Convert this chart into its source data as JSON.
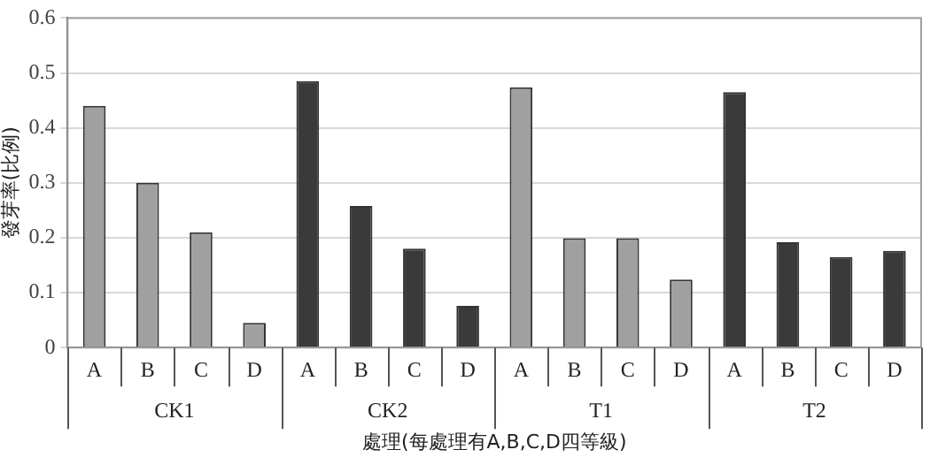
{
  "chart_data": {
    "type": "bar",
    "xlabel": "處理(每處理有A,B,C,D四等級)",
    "ylabel": "發芽率(比例)",
    "categories": [
      "A",
      "B",
      "C",
      "D",
      "A",
      "B",
      "C",
      "D",
      "A",
      "B",
      "C",
      "D",
      "A",
      "B",
      "C",
      "D"
    ],
    "values": [
      0.44,
      0.3,
      0.21,
      0.045,
      0.485,
      0.258,
      0.18,
      0.076,
      0.474,
      0.199,
      0.199,
      0.124,
      0.465,
      0.192,
      0.165,
      0.176
    ],
    "colors": [
      "#a0a0a0",
      "#a0a0a0",
      "#a0a0a0",
      "#a0a0a0",
      "#3a3a3a",
      "#3a3a3a",
      "#3a3a3a",
      "#3a3a3a",
      "#a0a0a0",
      "#a0a0a0",
      "#a0a0a0",
      "#a0a0a0",
      "#3a3a3a",
      "#3a3a3a",
      "#3a3a3a",
      "#3a3a3a"
    ],
    "annotations": [
      "CK1",
      "CK2",
      "T1",
      "T2"
    ],
    "ylim": [
      0,
      0.6
    ],
    "yticks": [
      0,
      0.1,
      0.2,
      0.3,
      0.4,
      0.5,
      0.6
    ],
    "grid": "y",
    "legend": false
  }
}
